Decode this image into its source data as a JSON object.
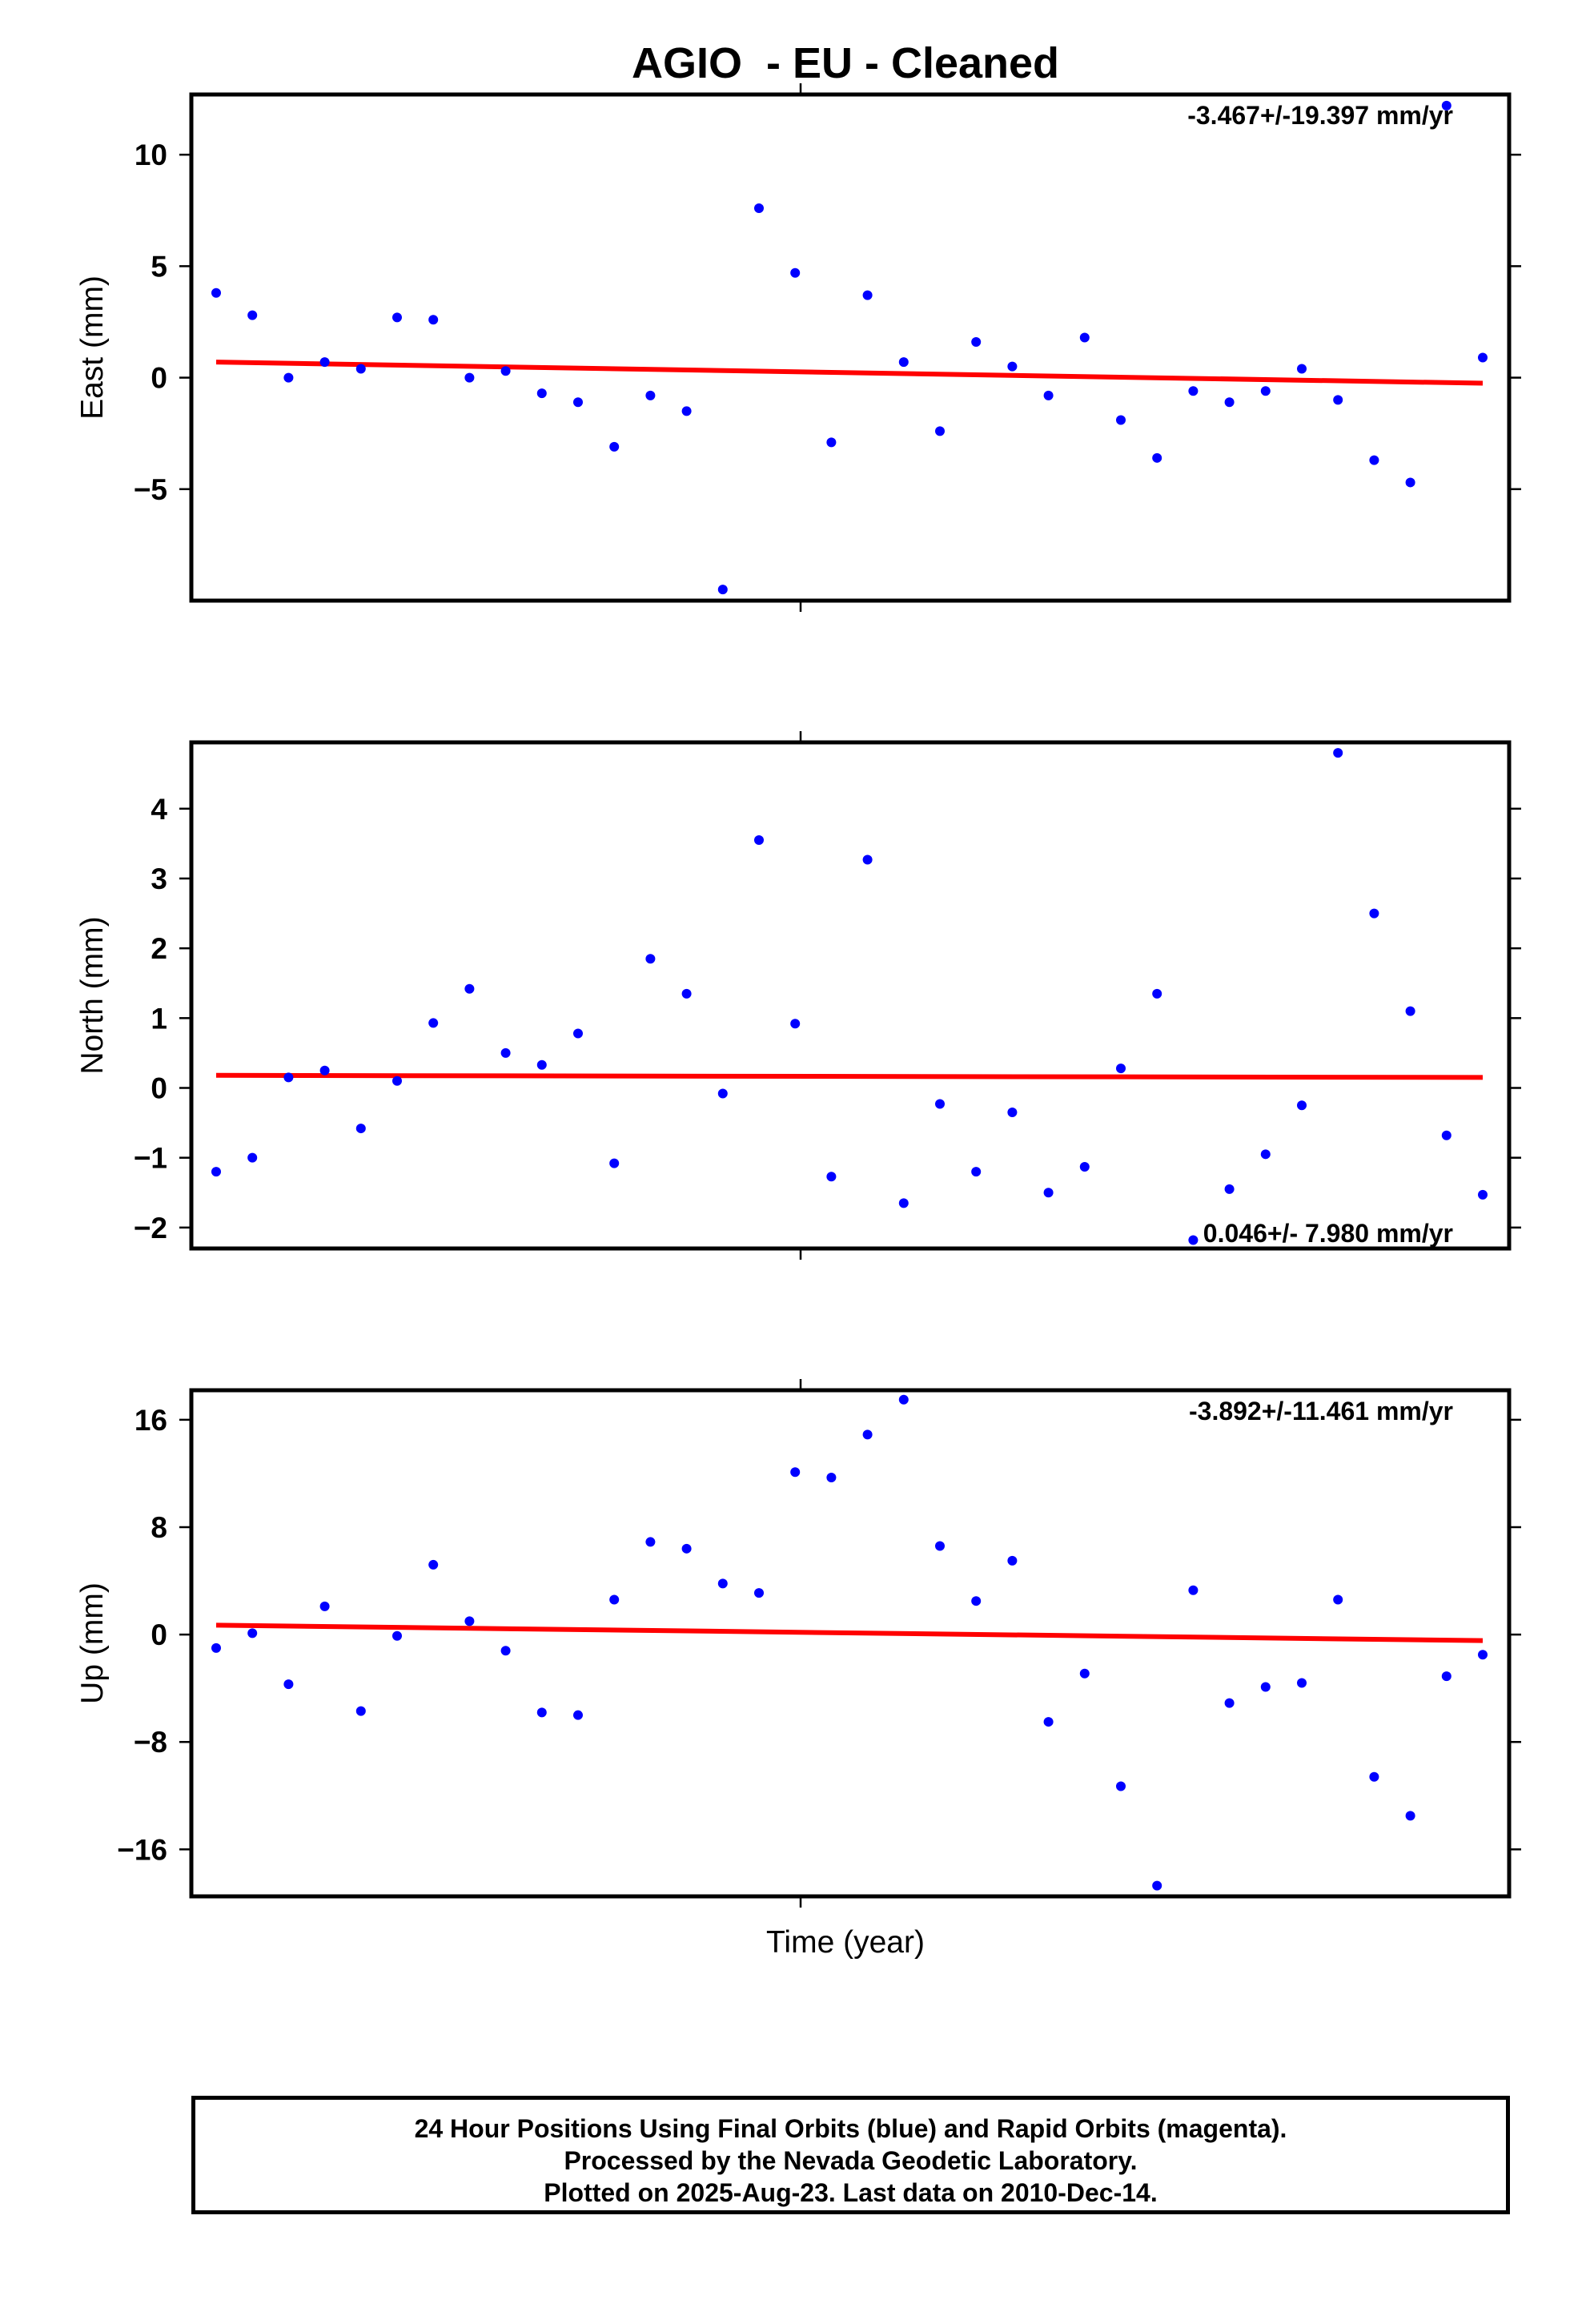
{
  "title": "AGIO  - EU - Cleaned",
  "xlabel": "Time (year)",
  "footer": {
    "line1": "24 Hour Positions Using Final Orbits (blue) and Rapid Orbits (magenta).",
    "line2": "Processed by the Nevada Geodetic Laboratory.",
    "line3": "Plotted on 2025-Aug-23. Last data on 2010-Dec-14."
  },
  "colors": {
    "points": "#0000ff",
    "trend": "#ff0000",
    "frame": "#000000"
  },
  "chart_data": [
    {
      "type": "scatter",
      "ylabel": "East (mm)",
      "rate_label": "-3.467+/-19.397 mm/yr",
      "rate_position": "top-right",
      "ylim": [
        -10,
        12.7
      ],
      "yticks": [
        10,
        5,
        0,
        -5
      ],
      "ytick_labels": [
        "10",
        "5",
        "0",
        "−5"
      ],
      "values": [
        3.8,
        2.8,
        0.0,
        0.7,
        0.4,
        2.7,
        2.6,
        0.0,
        0.3,
        -0.7,
        -1.1,
        -3.1,
        -0.8,
        -1.5,
        -9.5,
        7.6,
        4.7,
        -2.9,
        3.7,
        0.7,
        -2.4,
        1.6,
        0.5,
        -0.8,
        1.8,
        -1.9,
        -3.6,
        -0.6,
        -1.1,
        -0.6,
        0.4,
        -1.0,
        -3.7,
        -4.7,
        12.2,
        0.9
      ],
      "trend": [
        0.7,
        -0.25
      ]
    },
    {
      "type": "scatter",
      "ylabel": "North (mm)",
      "rate_label": "0.046+/- 7.980 mm/yr",
      "rate_position": "bottom-right",
      "ylim": [
        -2.3,
        4.95
      ],
      "yticks": [
        4,
        3,
        2,
        1,
        0,
        -1,
        -2
      ],
      "ytick_labels": [
        "4",
        "3",
        "2",
        "1",
        "0",
        "−1",
        "−2"
      ],
      "values": [
        -1.2,
        -1.0,
        0.15,
        0.25,
        -0.58,
        0.1,
        0.93,
        1.42,
        0.5,
        0.33,
        0.78,
        -1.08,
        1.85,
        1.35,
        -0.08,
        3.55,
        0.92,
        -1.27,
        3.27,
        -1.65,
        -0.23,
        -1.2,
        -0.35,
        -1.5,
        -1.13,
        0.28,
        1.35,
        -2.18,
        -1.45,
        -0.95,
        -0.25,
        4.8,
        2.5,
        1.1,
        -0.68,
        -1.53
      ],
      "trend": [
        0.18,
        0.15
      ]
    },
    {
      "type": "scatter",
      "ylabel": "Up (mm)",
      "rate_label": "-3.892+/-11.461 mm/yr",
      "rate_position": "top-right",
      "ylim": [
        -19.5,
        18.2
      ],
      "yticks": [
        16,
        8,
        0,
        -8,
        -16
      ],
      "ytick_labels": [
        "16",
        "8",
        "0",
        "−8",
        "−16"
      ],
      "values": [
        -1.0,
        0.1,
        -3.7,
        2.1,
        -5.7,
        -0.1,
        5.2,
        1.0,
        -1.2,
        -5.8,
        -6.0,
        2.6,
        6.9,
        6.4,
        3.8,
        3.1,
        12.1,
        11.7,
        14.9,
        17.5,
        6.6,
        2.5,
        5.5,
        -6.5,
        -2.9,
        -11.3,
        -18.7,
        3.3,
        -5.1,
        -3.9,
        -3.6,
        2.6,
        -10.6,
        -13.5,
        -3.1,
        -1.5
      ],
      "trend": [
        0.7,
        -0.45
      ]
    }
  ]
}
